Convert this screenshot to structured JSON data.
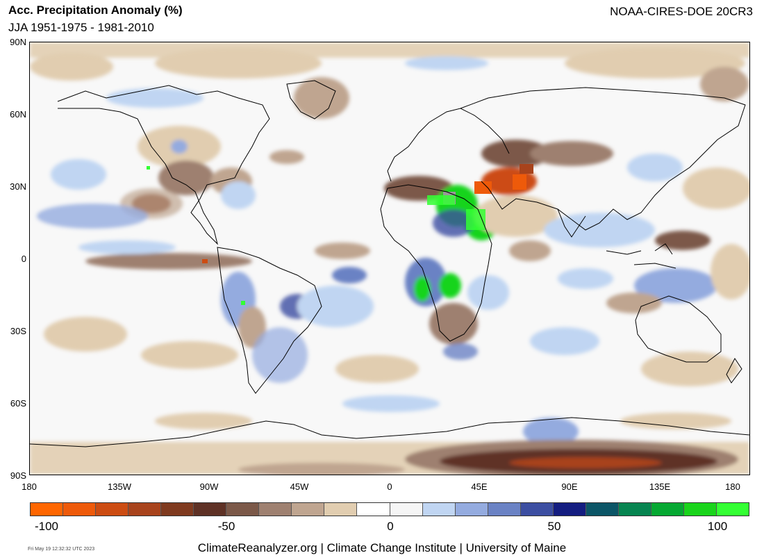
{
  "header": {
    "title": "Acc. Precipitation Anomaly (%)",
    "subtitle": "JJA 1951-1975 - 1981-2010",
    "dataset": "NOAA-CIRES-DOE 20CR3"
  },
  "axes": {
    "lat_labels": [
      "90N",
      "60N",
      "30N",
      "0",
      "30S",
      "60S",
      "90S"
    ],
    "lon_labels": [
      "180",
      "135W",
      "90W",
      "45W",
      "0",
      "45E",
      "90E",
      "135E",
      "180"
    ]
  },
  "colorbar": {
    "colors": [
      "#ff6600",
      "#ee5a0a",
      "#cc4c12",
      "#a8431c",
      "#7f3a1f",
      "#5e3125",
      "#7b5848",
      "#9e8070",
      "#bfa590",
      "#e1cdb0",
      "#ffffff",
      "#f5f5f5",
      "#c0d5f2",
      "#94abdf",
      "#6a82c4",
      "#3c4ea1",
      "#141d80",
      "#0b5566",
      "#068450",
      "#05a832",
      "#19d41b",
      "#33ff33"
    ],
    "labels": [
      "-100",
      "-50",
      "0",
      "50",
      "100"
    ]
  },
  "footer": {
    "credit": "ClimateReanalyzer.org | Climate Change Institute | University of Maine",
    "timestamp": "Fri May 19 12:32:32 UTC 2023"
  }
}
